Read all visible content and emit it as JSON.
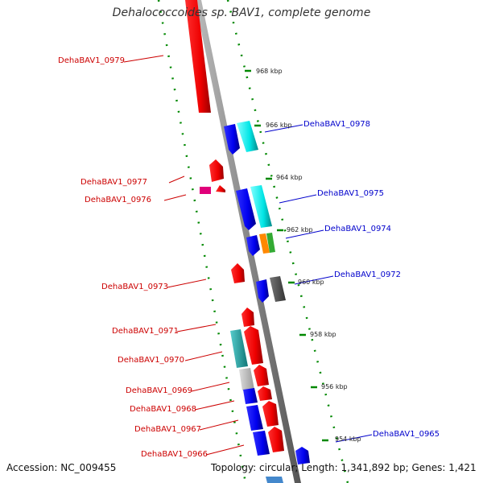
{
  "title": "Dehalococcoides sp. BAV1, complete genome",
  "accession": "Accession: NC_009455",
  "topology": "Topology: circular; Length: 1,341,892 bp; Genes: 1,421",
  "scale_ticks": [
    "968 kbp",
    "966 kbp",
    "964 kbp",
    "962 kbp",
    "960 kbp",
    "958 kbp",
    "956 kbp",
    "954 kbp"
  ],
  "left_genes": [
    "DehaBAV1_0979",
    "DehaBAV1_0977",
    "DehaBAV1_0976",
    "DehaBAV1_0973",
    "DehaBAV1_0971",
    "DehaBAV1_0970",
    "DehaBAV1_0969",
    "DehaBAV1_0968",
    "DehaBAV1_0967",
    "DehaBAV1_0966"
  ],
  "right_genes": [
    "DehaBAV1_0978",
    "DehaBAV1_0975",
    "DehaBAV1_0974",
    "DehaBAV1_0972",
    "DehaBAV1_0965"
  ],
  "colors": {
    "forward": "#ff0000",
    "reverse": "#0000ff",
    "cyan": "#00e5e5",
    "teal": "#22b5b5",
    "gray": "#bbbbbb",
    "darkgray": "#555555",
    "magenta": "#e0007a",
    "orange": "#ff8800",
    "green": "#33aa33",
    "scale": "#008800"
  }
}
